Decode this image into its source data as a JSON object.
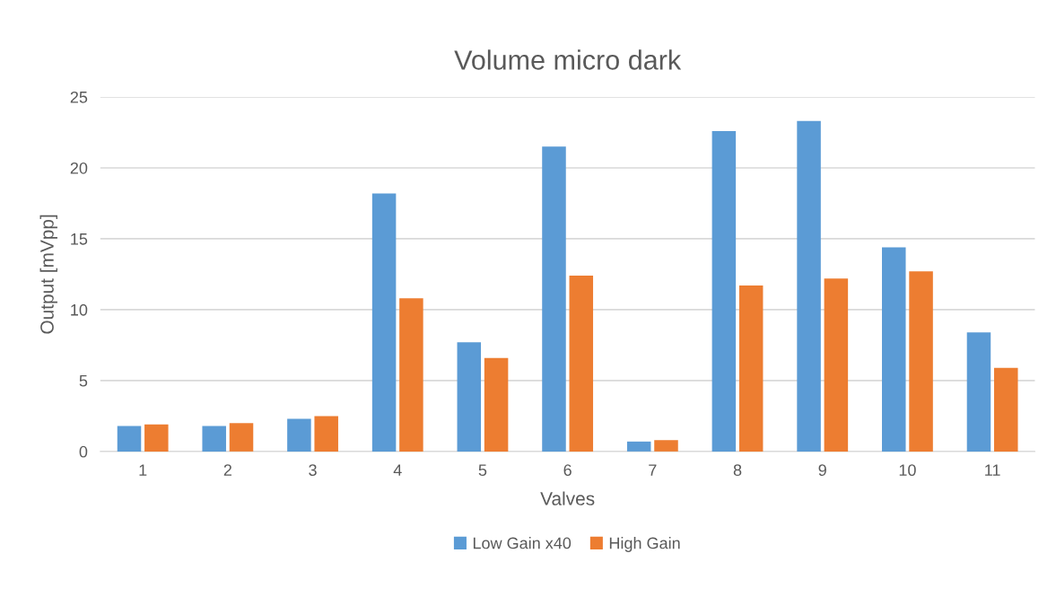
{
  "chart_data": {
    "type": "bar",
    "title": "Volume micro dark",
    "xlabel": "Valves",
    "ylabel": "Output [mVpp]",
    "categories": [
      "1",
      "2",
      "3",
      "4",
      "5",
      "6",
      "7",
      "8",
      "9",
      "10",
      "11"
    ],
    "series": [
      {
        "name": "Low Gain x40",
        "color": "#5b9bd5",
        "values": [
          1.8,
          1.8,
          2.3,
          18.2,
          7.7,
          21.5,
          0.7,
          22.6,
          23.3,
          14.4,
          8.4
        ]
      },
      {
        "name": "High Gain",
        "color": "#ed7d31",
        "values": [
          1.9,
          2.0,
          2.5,
          10.8,
          6.6,
          12.4,
          0.8,
          11.7,
          12.2,
          12.7,
          5.9
        ]
      }
    ],
    "ylim": [
      0,
      25
    ],
    "yticks": [
      0,
      5,
      10,
      15,
      20,
      25
    ],
    "grid": "y",
    "legend": "bottom"
  }
}
